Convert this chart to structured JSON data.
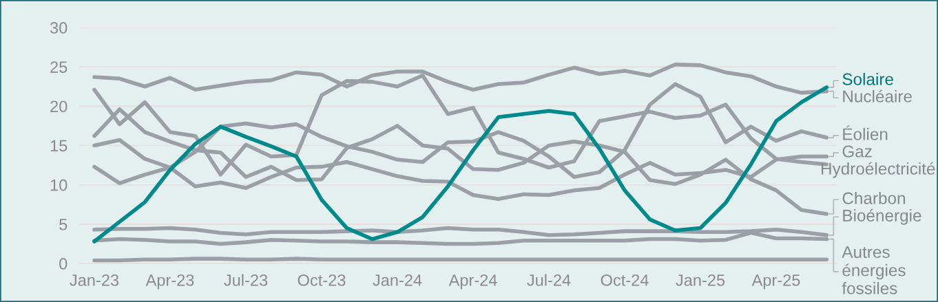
{
  "chart_data": {
    "type": "line",
    "categories": [
      "Jan-23",
      null,
      null,
      "Apr-23",
      null,
      null,
      "Jul-23",
      null,
      null,
      "Oct-23",
      null,
      null,
      "Jan-24",
      null,
      null,
      "Apr-24",
      null,
      null,
      "Jul-24",
      null,
      null,
      "Oct-24",
      null,
      null,
      "Jan-25",
      null,
      null,
      "Apr-25",
      null,
      null
    ],
    "series": [
      {
        "name": "Solaire",
        "color": "#008a8c",
        "values": [
          2.8,
          5.3,
          7.8,
          11.9,
          15.2,
          17.4,
          16.1,
          14.9,
          13.6,
          8.1,
          4.5,
          3.1,
          4.0,
          5.9,
          9.8,
          14.4,
          18.6,
          19.0,
          19.4,
          19.0,
          14.6,
          9.3,
          5.6,
          4.2,
          4.5,
          7.7,
          12.6,
          18.1,
          20.5,
          22.4
        ]
      },
      {
        "name": "Nucléaire",
        "color": "#9aa0a6",
        "values": [
          23.7,
          23.5,
          22.5,
          23.6,
          22.1,
          22.6,
          23.1,
          23.3,
          24.3,
          24.0,
          22.5,
          23.9,
          24.4,
          24.4,
          23.1,
          22.1,
          22.8,
          23.0,
          24.0,
          24.9,
          24.1,
          24.5,
          23.9,
          25.3,
          25.2,
          24.3,
          23.8,
          22.5,
          21.7,
          21.9
        ]
      },
      {
        "name": "Éolien",
        "color": "#9aa0a6",
        "values": [
          12.3,
          10.2,
          11.3,
          12.2,
          14.2,
          17.4,
          17.8,
          17.3,
          17.7,
          16.1,
          14.9,
          14.2,
          13.2,
          12.9,
          15.4,
          15.5,
          16.7,
          15.6,
          13.6,
          11.0,
          11.6,
          14.4,
          20.2,
          22.8,
          21.2,
          15.4,
          17.4,
          15.6,
          16.8,
          16.0
        ]
      },
      {
        "name": "Gaz",
        "color": "#9aa0a6",
        "values": [
          15.0,
          15.7,
          13.3,
          12.2,
          9.8,
          10.3,
          9.6,
          11.0,
          12.2,
          12.3,
          12.9,
          12.0,
          11.1,
          10.5,
          10.4,
          8.7,
          8.2,
          8.8,
          8.7,
          9.3,
          9.6,
          11.3,
          12.8,
          11.3,
          11.5,
          11.9,
          11.0,
          13.2,
          13.6,
          13.6
        ]
      },
      {
        "name": "Hydroélectricité",
        "color": "#9aa0a6",
        "values": [
          22.1,
          17.7,
          20.5,
          16.7,
          16.2,
          11.3,
          15.1,
          13.6,
          13.8,
          21.4,
          23.2,
          23.1,
          22.5,
          23.9,
          19.0,
          19.8,
          14.1,
          13.3,
          12.2,
          13.0,
          18.1,
          18.7,
          19.3,
          18.5,
          18.8,
          20.2,
          15.9,
          13.3,
          12.9,
          12.6
        ]
      },
      {
        "name": "Charbon",
        "color": "#9aa0a6",
        "values": [
          16.2,
          19.6,
          16.7,
          15.5,
          14.4,
          14.1,
          11.0,
          12.3,
          10.6,
          10.7,
          14.7,
          15.8,
          17.5,
          15.0,
          14.6,
          12.0,
          11.9,
          12.8,
          15.0,
          15.5,
          15.0,
          14.2,
          10.6,
          10.1,
          11.3,
          13.2,
          10.7,
          9.3,
          6.8,
          6.3
        ]
      },
      {
        "name": "Bioénergie",
        "color": "#9aa0a6",
        "values": [
          4.3,
          4.4,
          4.4,
          4.5,
          4.3,
          3.9,
          3.7,
          4.0,
          4.0,
          4.0,
          4.1,
          4.2,
          4.0,
          4.2,
          4.5,
          4.3,
          4.3,
          4.0,
          3.6,
          3.7,
          3.9,
          4.1,
          4.1,
          4.1,
          4.0,
          4.0,
          4.1,
          4.3,
          4.0,
          3.6
        ]
      },
      {
        "name": "Autres énergies fossiles",
        "color": "#9aa0a6",
        "values": [
          2.9,
          3.1,
          3.0,
          2.8,
          2.8,
          2.5,
          2.7,
          3.0,
          2.9,
          2.8,
          2.8,
          2.7,
          2.7,
          2.6,
          2.5,
          2.5,
          2.6,
          2.9,
          2.9,
          2.9,
          2.9,
          2.9,
          3.1,
          3.1,
          2.9,
          3.0,
          3.9,
          3.2,
          3.2,
          3.1
        ]
      },
      {
        "color": "#9aa0a6",
        "values": [
          0.4,
          0.4,
          0.5,
          0.5,
          0.6,
          0.6,
          0.5,
          0.5,
          0.6,
          0.5,
          0.5,
          0.5,
          0.5,
          0.5,
          0.5,
          0.5,
          0.5,
          0.5,
          0.5,
          0.5,
          0.5,
          0.5,
          0.5,
          0.5,
          0.5,
          0.5,
          0.5,
          0.5,
          0.5,
          0.5
        ]
      }
    ],
    "ylim": [
      0,
      30
    ],
    "yticks": [
      0,
      5,
      10,
      15,
      20,
      25,
      30
    ],
    "grid": "y"
  }
}
